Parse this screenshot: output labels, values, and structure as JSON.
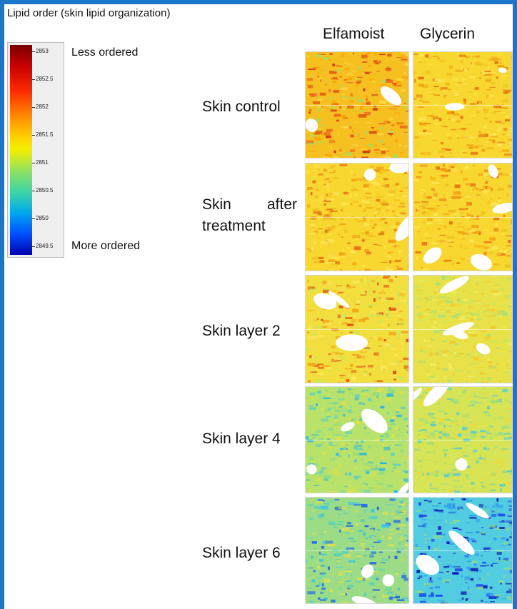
{
  "figure": {
    "title": "Lipid order (skin lipid organization)",
    "colorbar": {
      "ticks": [
        "2853",
        "2852.5",
        "2852",
        "2851.5",
        "2851",
        "2850.5",
        "2850",
        "2849.5"
      ],
      "top_note": "Less ordered",
      "bottom_note": "More ordered",
      "colormap": "jet"
    },
    "columns": [
      "Elfamoist",
      "Glycerin"
    ],
    "rows": [
      {
        "label_lines": [
          "Skin control"
        ]
      },
      {
        "label_lines": [
          "Skin after",
          "treatment"
        ]
      },
      {
        "label_lines": [
          "Skin layer 2"
        ]
      },
      {
        "label_lines": [
          "Skin layer 4"
        ]
      },
      {
        "label_lines": [
          "Skin layer 6"
        ]
      }
    ],
    "tile_tones": [
      [
        "orange-noisy",
        "yellow-orange"
      ],
      [
        "yellow-orange",
        "yellow-orange"
      ],
      [
        "yellow-red-spot",
        "yellow-green"
      ],
      [
        "green-cyan",
        "yellow-blue-band"
      ],
      [
        "cyan-blue",
        "blue-white"
      ]
    ],
    "colors": {
      "border": "#1b76c9",
      "background": "#ffffff"
    }
  }
}
